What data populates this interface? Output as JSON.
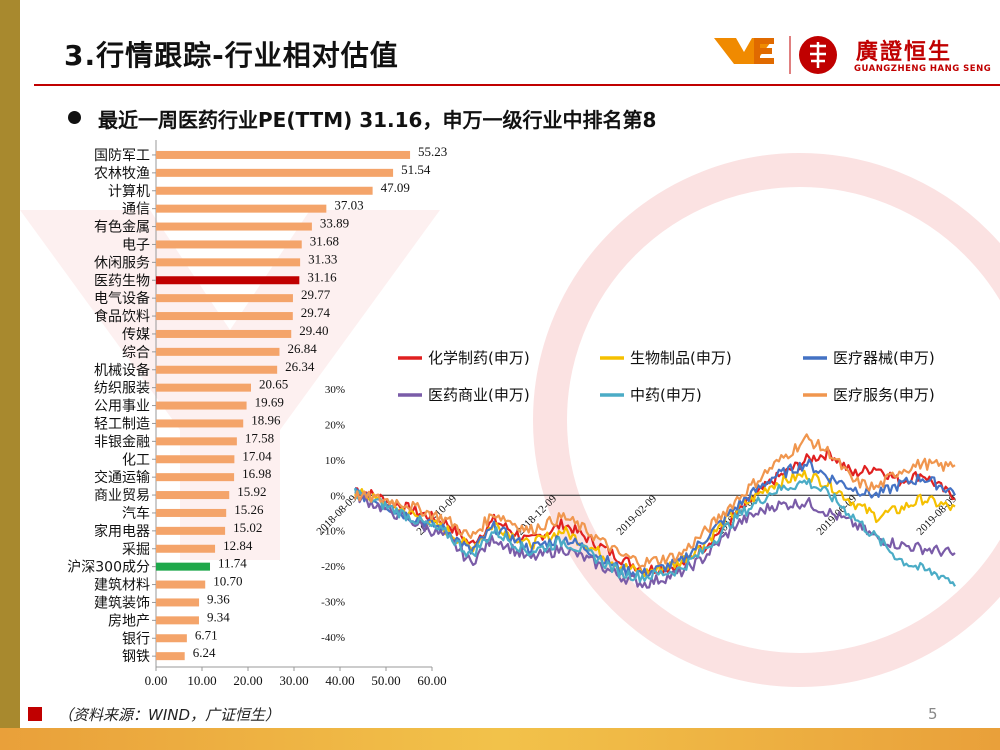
{
  "header": {
    "title": "3.行情跟踪-行业相对估值",
    "logo_name": "廣證恒生",
    "logo_en": "GUANGZHENG HANG SENG",
    "logo_mark": "YE"
  },
  "bullet": {
    "text": "最近一周医药行业PE(TTM) 31.16，申万一级行业中排名第8"
  },
  "colors": {
    "accent_red": "#c00000",
    "bar_orange": "#f4a46a",
    "bar_highlight": "#c00000",
    "bar_benchmark": "#1ea84b"
  },
  "chart_data": [
    {
      "type": "bar",
      "orientation": "horizontal",
      "title": "",
      "categories": [
        "国防军工",
        "农林牧渔",
        "计算机",
        "通信",
        "有色金属",
        "电子",
        "休闲服务",
        "医药生物",
        "电气设备",
        "食品饮料",
        "传媒",
        "综合",
        "机械设备",
        "纺织服装",
        "公用事业",
        "轻工制造",
        "非银金融",
        "化工",
        "交通运输",
        "商业贸易",
        "汽车",
        "家用电器",
        "采掘",
        "沪深300成分",
        "建筑材料",
        "建筑装饰",
        "房地产",
        "银行",
        "钢铁"
      ],
      "values": [
        55.23,
        51.54,
        47.09,
        37.03,
        33.89,
        31.68,
        31.33,
        31.16,
        29.77,
        29.74,
        29.4,
        26.84,
        26.34,
        20.65,
        19.69,
        18.96,
        17.58,
        17.04,
        16.98,
        15.92,
        15.26,
        15.02,
        12.84,
        11.74,
        10.7,
        9.36,
        9.34,
        6.71,
        6.24
      ],
      "value_labels": [
        "55.23",
        "51.54",
        "47.09",
        "37.03",
        "33.89",
        "31.68",
        "31.33",
        "31.16",
        "29.77",
        "29.74",
        "29.40",
        "26.84",
        "26.34",
        "20.65",
        "19.69",
        "18.96",
        "17.58",
        "17.04",
        "16.98",
        "15.92",
        "15.26",
        "15.02",
        "12.84",
        "11.74",
        "10.70",
        "9.36",
        "9.34",
        "6.71",
        "6.24"
      ],
      "highlight": "医药生物",
      "benchmark": "沪深300成分",
      "xlim": [
        0,
        60
      ],
      "x_ticks": [
        "0.00",
        "10.00",
        "20.00",
        "30.00",
        "40.00",
        "50.00",
        "60.00"
      ]
    },
    {
      "type": "line",
      "title": "",
      "ylim": [
        -40,
        30
      ],
      "y_ticks": [
        "30%",
        "20%",
        "10%",
        "0%",
        "-10%",
        "-20%",
        "-30%",
        "-40%"
      ],
      "x_ticks": [
        "2018-08-09",
        "2018-10-09",
        "2018-12-09",
        "2019-02-09",
        "2019-04-09",
        "2019-06-09",
        "2019-08-09"
      ],
      "x_count": 260,
      "series": [
        {
          "name": "化学制药(申万)",
          "color": "#e02020",
          "anchors": [
            [
              0,
              2
            ],
            [
              20,
              -3
            ],
            [
              40,
              -8
            ],
            [
              50,
              -14
            ],
            [
              60,
              -7
            ],
            [
              75,
              -13
            ],
            [
              90,
              -8
            ],
            [
              100,
              -12
            ],
            [
              115,
              -18
            ],
            [
              125,
              -21
            ],
            [
              140,
              -20
            ],
            [
              150,
              -15
            ],
            [
              165,
              -5
            ],
            [
              180,
              4
            ],
            [
              195,
              10
            ],
            [
              205,
              12
            ],
            [
              215,
              6
            ],
            [
              225,
              8
            ],
            [
              235,
              4
            ],
            [
              245,
              6
            ],
            [
              255,
              1
            ],
            [
              259,
              0
            ]
          ]
        },
        {
          "name": "生物制品(申万)",
          "color": "#f5c000",
          "anchors": [
            [
              0,
              1
            ],
            [
              20,
              -4
            ],
            [
              40,
              -10
            ],
            [
              50,
              -15
            ],
            [
              60,
              -8
            ],
            [
              75,
              -14
            ],
            [
              90,
              -10
            ],
            [
              100,
              -14
            ],
            [
              115,
              -20
            ],
            [
              125,
              -22
            ],
            [
              140,
              -19
            ],
            [
              150,
              -14
            ],
            [
              165,
              -4
            ],
            [
              180,
              3
            ],
            [
              195,
              6
            ],
            [
              205,
              3
            ],
            [
              215,
              -2
            ],
            [
              225,
              -6
            ],
            [
              235,
              -4
            ],
            [
              245,
              -1
            ],
            [
              255,
              -3
            ],
            [
              259,
              -4
            ]
          ]
        },
        {
          "name": "医疗器械(申万)",
          "color": "#4472c4",
          "anchors": [
            [
              0,
              1
            ],
            [
              20,
              -5
            ],
            [
              40,
              -10
            ],
            [
              50,
              -16
            ],
            [
              60,
              -9
            ],
            [
              75,
              -15
            ],
            [
              90,
              -12
            ],
            [
              100,
              -15
            ],
            [
              115,
              -21
            ],
            [
              125,
              -22
            ],
            [
              140,
              -19
            ],
            [
              150,
              -13
            ],
            [
              165,
              -3
            ],
            [
              180,
              5
            ],
            [
              195,
              9
            ],
            [
              205,
              5
            ],
            [
              215,
              2
            ],
            [
              225,
              0
            ],
            [
              235,
              3
            ],
            [
              245,
              5
            ],
            [
              255,
              2
            ],
            [
              259,
              1
            ]
          ]
        },
        {
          "name": "医药商业(申万)",
          "color": "#7a5ca8",
          "anchors": [
            [
              0,
              0
            ],
            [
              20,
              -6
            ],
            [
              40,
              -12
            ],
            [
              50,
              -19
            ],
            [
              60,
              -12
            ],
            [
              75,
              -18
            ],
            [
              90,
              -15
            ],
            [
              100,
              -18
            ],
            [
              115,
              -23
            ],
            [
              125,
              -25
            ],
            [
              140,
              -22
            ],
            [
              150,
              -18
            ],
            [
              165,
              -8
            ],
            [
              180,
              -3
            ],
            [
              195,
              -2
            ],
            [
              205,
              -5
            ],
            [
              215,
              -8
            ],
            [
              225,
              -12
            ],
            [
              235,
              -14
            ],
            [
              245,
              -15
            ],
            [
              255,
              -16
            ],
            [
              259,
              -17
            ]
          ]
        },
        {
          "name": "中药(申万)",
          "color": "#4bacc6",
          "anchors": [
            [
              0,
              1
            ],
            [
              20,
              -5
            ],
            [
              40,
              -11
            ],
            [
              50,
              -17
            ],
            [
              60,
              -10
            ],
            [
              75,
              -16
            ],
            [
              90,
              -13
            ],
            [
              100,
              -16
            ],
            [
              115,
              -22
            ],
            [
              125,
              -23
            ],
            [
              140,
              -21
            ],
            [
              150,
              -16
            ],
            [
              165,
              -6
            ],
            [
              180,
              1
            ],
            [
              195,
              4
            ],
            [
              205,
              0
            ],
            [
              215,
              -6
            ],
            [
              225,
              -12
            ],
            [
              235,
              -18
            ],
            [
              245,
              -21
            ],
            [
              255,
              -23
            ],
            [
              259,
              -25
            ]
          ]
        },
        {
          "name": "医疗服务(申万)",
          "color": "#f0964e",
          "anchors": [
            [
              0,
              0
            ],
            [
              20,
              -2
            ],
            [
              40,
              -7
            ],
            [
              50,
              -12
            ],
            [
              60,
              -5
            ],
            [
              75,
              -10
            ],
            [
              90,
              -6
            ],
            [
              100,
              -10
            ],
            [
              115,
              -17
            ],
            [
              125,
              -19
            ],
            [
              140,
              -17
            ],
            [
              150,
              -11
            ],
            [
              165,
              -1
            ],
            [
              180,
              8
            ],
            [
              195,
              16
            ],
            [
              205,
              12
            ],
            [
              215,
              4
            ],
            [
              225,
              2
            ],
            [
              235,
              7
            ],
            [
              245,
              9
            ],
            [
              255,
              8
            ],
            [
              259,
              9
            ]
          ]
        }
      ]
    }
  ],
  "source": "（资料来源：WIND，广证恒生）",
  "page_number": "5"
}
